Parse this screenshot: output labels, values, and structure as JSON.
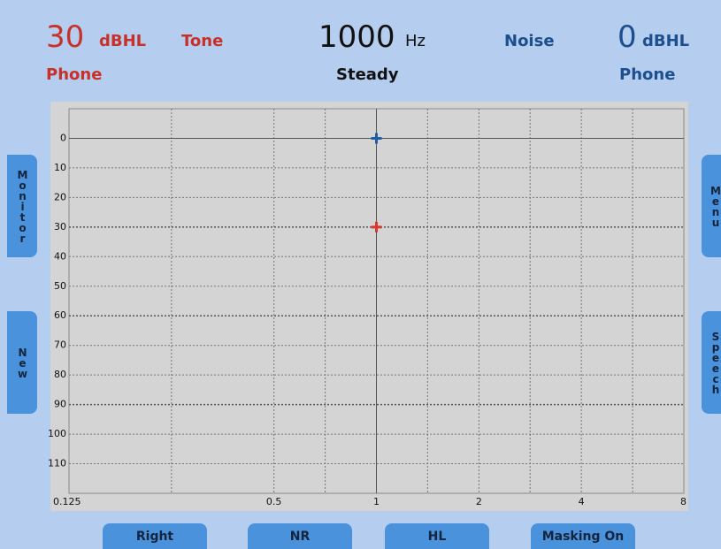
{
  "header": {
    "left": {
      "level": "30",
      "unit": "dBHL",
      "stimulus": "Tone",
      "transducer": "Phone"
    },
    "center": {
      "frequency": "1000",
      "unit": "Hz",
      "mode": "Steady"
    },
    "right": {
      "label": "Noise",
      "level": "0",
      "unit": "dBHL",
      "transducer": "Phone"
    }
  },
  "side_buttons": {
    "left": [
      "Monitor",
      "New"
    ],
    "right": [
      "Menu",
      "Speech"
    ]
  },
  "bottom_buttons": [
    "Right",
    "NR",
    "HL",
    "Masking On"
  ],
  "chart_data": {
    "type": "scatter",
    "xscale": "log",
    "xlim": [
      0.125,
      8
    ],
    "xticks": [
      0.125,
      0.5,
      1,
      2,
      4,
      8
    ],
    "xminor": [
      0.25,
      0.707,
      1.414,
      2.828,
      5.657
    ],
    "ylim": [
      -10,
      120
    ],
    "yinverted": true,
    "yticks": [
      0,
      10,
      20,
      30,
      40,
      50,
      60,
      70,
      80,
      90,
      100,
      110
    ],
    "grid": true,
    "marker": "plus",
    "series": [
      {
        "color": "#1f5ba6",
        "x": [
          1
        ],
        "values": [
          0
        ]
      },
      {
        "color": "#d9382c",
        "x": [
          1
        ],
        "values": [
          30
        ]
      }
    ]
  }
}
